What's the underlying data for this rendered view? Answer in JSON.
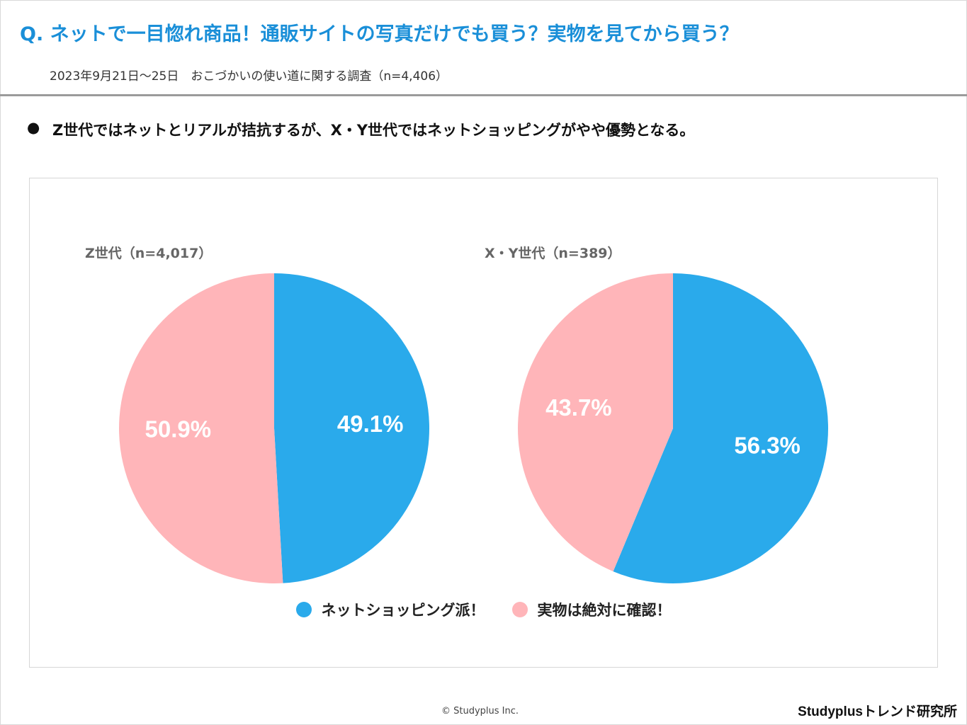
{
  "header": {
    "title": "Q. ネットで一目惚れ商品！通販サイトの写真だけでも買う？実物を見てから買う？",
    "subtitle": "2023年9月21日～25日　おこづかいの使い道に関する調査（n=4,406）"
  },
  "summary": {
    "bullet": "●",
    "text": "Z世代ではネットとリアルが拮抗するが、X・Y世代ではネットショッピングがやや優勢となる。"
  },
  "colors": {
    "net": "#2aaaeb",
    "real": "#ffb5b9",
    "title": "#1a8fd8"
  },
  "chart_data": [
    {
      "type": "pie",
      "title": "Z世代（n=4,017）",
      "slices": [
        {
          "name": "ネットショッピング派！",
          "value": 49.1,
          "label": "49.1%"
        },
        {
          "name": "実物は絶対に確認！",
          "value": 50.9,
          "label": "50.9%"
        }
      ]
    },
    {
      "type": "pie",
      "title": "X・Y世代（n=389）",
      "slices": [
        {
          "name": "ネットショッピング派！",
          "value": 56.3,
          "label": "56.3%"
        },
        {
          "name": "実物は絶対に確認！",
          "value": 43.7,
          "label": "43.7%"
        }
      ]
    }
  ],
  "legend": {
    "items": [
      {
        "label": "ネットショッピング派！",
        "color": "#2aaaeb"
      },
      {
        "label": "実物は絶対に確認！",
        "color": "#ffb5b9"
      }
    ],
    "placement": "bottom"
  },
  "footer": {
    "copyright": "© Studyplus Inc.",
    "brand": "Studyplusトレンド研究所"
  }
}
